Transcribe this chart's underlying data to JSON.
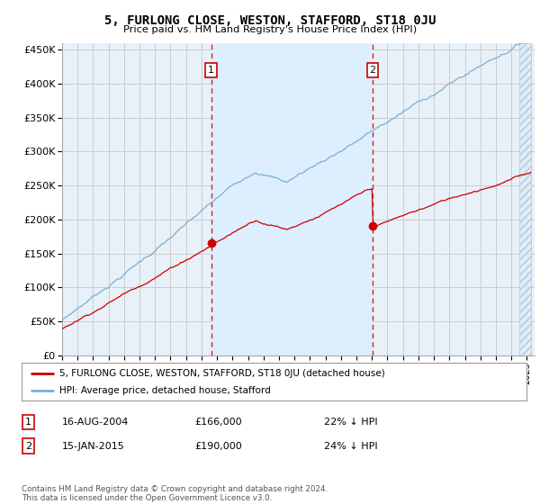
{
  "title": "5, FURLONG CLOSE, WESTON, STAFFORD, ST18 0JU",
  "subtitle": "Price paid vs. HM Land Registry's House Price Index (HPI)",
  "ylabel_ticks": [
    "£0",
    "£50K",
    "£100K",
    "£150K",
    "£200K",
    "£250K",
    "£300K",
    "£350K",
    "£400K",
    "£450K"
  ],
  "ytick_values": [
    0,
    50000,
    100000,
    150000,
    200000,
    250000,
    300000,
    350000,
    400000,
    450000
  ],
  "xlim_start": 1995.0,
  "xlim_end": 2025.5,
  "ylim_min": 0,
  "ylim_max": 460000,
  "sale1_date": 2004.625,
  "sale1_price": 166000,
  "sale2_date": 2015.042,
  "sale2_price": 190000,
  "red_line_color": "#cc0000",
  "blue_line_color": "#7ab0d4",
  "shade_color": "#ddeeff",
  "grid_color": "#cccccc",
  "bg_color": "#e8f0f8",
  "legend_label_red": "5, FURLONG CLOSE, WESTON, STAFFORD, ST18 0JU (detached house)",
  "legend_label_blue": "HPI: Average price, detached house, Stafford",
  "footnote": "Contains HM Land Registry data © Crown copyright and database right 2024.\nThis data is licensed under the Open Government Licence v3.0.",
  "table_rows": [
    {
      "num": "1",
      "date": "16-AUG-2004",
      "price": "£166,000",
      "hpi": "22% ↓ HPI"
    },
    {
      "num": "2",
      "date": "15-JAN-2015",
      "price": "£190,000",
      "hpi": "24% ↓ HPI"
    }
  ]
}
